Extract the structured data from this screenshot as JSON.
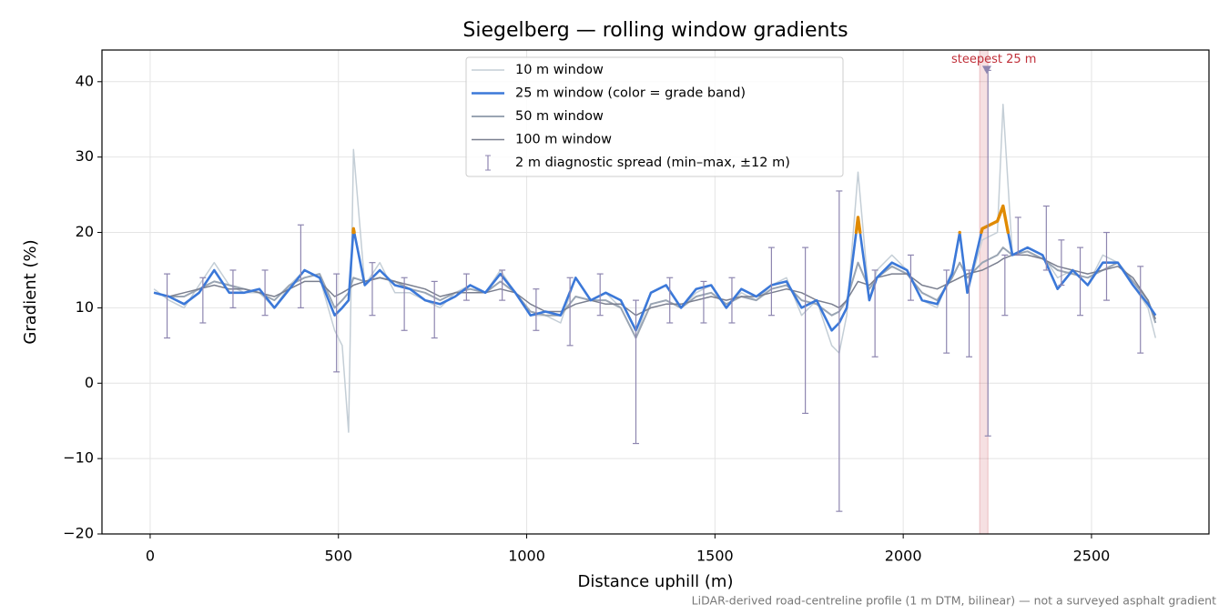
{
  "chart_data": {
    "type": "line",
    "title": "Siegelberg — rolling window gradients",
    "x_label": "Distance uphill (m)",
    "y_label": "Gradient (%)",
    "note": "LiDAR-derived road-centreline profile (1 m DTM, bilinear) — not a surveyed asphalt gradient",
    "xlim": [
      -128,
      2812
    ],
    "ylim": [
      -20,
      44.2
    ],
    "xticks": [
      0,
      500,
      1000,
      1500,
      2000,
      2500
    ],
    "yticks": [
      {
        "value": -20,
        "label": "−20"
      },
      {
        "value": -10,
        "label": "−10"
      },
      0,
      10,
      20,
      30,
      40
    ],
    "grid": true,
    "legend": "upper center",
    "x": [
      10,
      50,
      90,
      130,
      170,
      210,
      250,
      290,
      330,
      370,
      410,
      450,
      490,
      510,
      527,
      540,
      570,
      610,
      650,
      690,
      730,
      770,
      810,
      850,
      890,
      930,
      970,
      1010,
      1050,
      1090,
      1130,
      1170,
      1210,
      1250,
      1290,
      1330,
      1370,
      1410,
      1450,
      1490,
      1530,
      1570,
      1610,
      1650,
      1690,
      1730,
      1770,
      1810,
      1830,
      1850,
      1880,
      1910,
      1930,
      1970,
      2010,
      2050,
      2090,
      2130,
      2150,
      2170,
      2210,
      2250,
      2265,
      2290,
      2330,
      2370,
      2410,
      2450,
      2490,
      2530,
      2570,
      2610,
      2650,
      2670
    ],
    "series": [
      {
        "name": "10 m window",
        "color": "#c4ced6",
        "width": 1.5,
        "values": [
          12.5,
          11,
          10,
          13,
          16,
          13,
          12,
          12,
          10,
          13,
          15,
          14,
          7,
          5,
          -6.5,
          31,
          13,
          16,
          12,
          12,
          11,
          10,
          12,
          13,
          12,
          15,
          12,
          9,
          9,
          8,
          14,
          11,
          12,
          10,
          6,
          12,
          13,
          10,
          12,
          13,
          10,
          12,
          11,
          13,
          14,
          9,
          11,
          5,
          4,
          9,
          28,
          11,
          15,
          17,
          15,
          11,
          10,
          15,
          20,
          12,
          19,
          20,
          37,
          17,
          18,
          17,
          14,
          15,
          13,
          17,
          16,
          13,
          10,
          6
        ]
      },
      {
        "name": "25 m window (color = grade band)",
        "color": "#3b78d8",
        "width": 2.6,
        "grade_band": {
          "above": 20,
          "color": "#e08a00"
        },
        "values": [
          12,
          11.5,
          10.5,
          12,
          15,
          12,
          12,
          12.5,
          10,
          12.5,
          15,
          14,
          9,
          10,
          11,
          20.5,
          13,
          15,
          13,
          12.5,
          11,
          10.5,
          11.5,
          13,
          12,
          14.5,
          12,
          9,
          9.5,
          9,
          14,
          11,
          12,
          11,
          7,
          12,
          13,
          10,
          12.5,
          13,
          10,
          12.5,
          11.5,
          13,
          13.5,
          10,
          11,
          7,
          8,
          10,
          22,
          11,
          14,
          16,
          15,
          11,
          10.5,
          14.5,
          20,
          12,
          20.5,
          21.5,
          23.5,
          17,
          18,
          17,
          12.5,
          15,
          13,
          16,
          16,
          13,
          10.5,
          9
        ]
      },
      {
        "name": "50 m window",
        "color": "#9aa5b3",
        "width": 2,
        "values": [
          12,
          11.5,
          11.5,
          12.5,
          13.5,
          13,
          12.5,
          12,
          11,
          13,
          14,
          14.5,
          10,
          11,
          12,
          14,
          13.5,
          14,
          13.5,
          12.5,
          12,
          11,
          12,
          12.5,
          12,
          13.5,
          12,
          9.5,
          9,
          9,
          11.5,
          11,
          11,
          10,
          6,
          10.5,
          11,
          10,
          11.5,
          12,
          10.5,
          11.5,
          11,
          12.5,
          13,
          11,
          10.5,
          9,
          9.5,
          11,
          16,
          12.5,
          14,
          15.5,
          14.5,
          12,
          11,
          14,
          16,
          14,
          16,
          17,
          18,
          17,
          17.5,
          16.5,
          15,
          14.5,
          14,
          15,
          16,
          13.5,
          11,
          8
        ]
      },
      {
        "name": "100 m window",
        "color": "#7a7f8f",
        "width": 1.5,
        "values": [
          12,
          11.5,
          12,
          12.5,
          13,
          12.5,
          12.5,
          12,
          11.5,
          12.5,
          13.5,
          13.5,
          11.5,
          12,
          12.5,
          13,
          13.5,
          14,
          13.5,
          13,
          12.5,
          11.5,
          12,
          12,
          12,
          12.5,
          12,
          10.5,
          9.5,
          9.5,
          10.5,
          11,
          10.5,
          10.5,
          9,
          10,
          10.5,
          10.5,
          11,
          11.5,
          11,
          11.5,
          11.5,
          12,
          12.5,
          12,
          11,
          10.5,
          10,
          11,
          13.5,
          13,
          14,
          14.5,
          14.5,
          13,
          12.5,
          13.5,
          14,
          14.5,
          15,
          16,
          16.5,
          17,
          17,
          16.5,
          15.5,
          15,
          14.5,
          15,
          15.5,
          14,
          11,
          8.5
        ]
      }
    ],
    "spread": {
      "name": "2 m diagnostic spread (min–max, ±12 m)",
      "color": "#8e86b0",
      "x": [
        45,
        140,
        220,
        305,
        400,
        495,
        590,
        675,
        755,
        840,
        935,
        1025,
        1115,
        1195,
        1290,
        1380,
        1470,
        1545,
        1650,
        1740,
        1830,
        1925,
        2020,
        2115,
        2175,
        2225,
        2270,
        2305,
        2380,
        2420,
        2470,
        2540,
        2630
      ],
      "low": [
        6,
        8,
        10,
        9,
        10,
        1.5,
        9,
        7,
        6,
        11,
        11,
        7,
        5,
        9,
        -8,
        8,
        8,
        8,
        9,
        -4,
        -17,
        3.5,
        11,
        4,
        3.5,
        -7,
        9,
        17,
        15,
        13,
        9,
        11,
        4
      ],
      "high": [
        14.5,
        14,
        15,
        15,
        21,
        14.5,
        16,
        14,
        13.5,
        14.5,
        15,
        12.5,
        14,
        14.5,
        11,
        14,
        13.5,
        14,
        18,
        18,
        25.5,
        15,
        17,
        15,
        15,
        41.5,
        17,
        22,
        23.5,
        19,
        18,
        20,
        15.5
      ]
    },
    "annotation": {
      "text": "steepest 25 m",
      "x": 2222,
      "y": 41.5,
      "span": [
        2203,
        2225
      ],
      "color": "#c0303a"
    }
  }
}
